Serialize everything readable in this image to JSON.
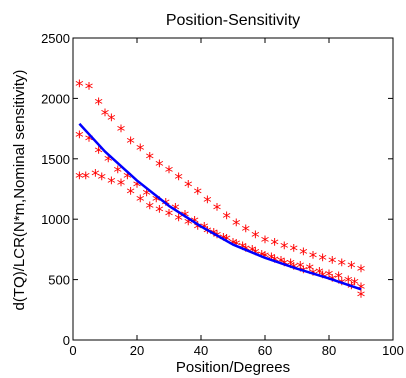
{
  "chart_data": {
    "type": "scatter",
    "title": "Position-Sensitivity",
    "xlabel": "Position/Degrees",
    "ylabel": "d(TQ)/LCR(N*m,Nominal sensitivity)",
    "xlim": [
      0,
      100
    ],
    "ylim": [
      0,
      2500
    ],
    "xticks": [
      "0",
      "20",
      "40",
      "60",
      "80",
      "100"
    ],
    "yticks": [
      "0",
      "500",
      "1000",
      "1500",
      "2000",
      "2500"
    ],
    "grid": false,
    "series": [
      {
        "style": "markers",
        "marker": "*",
        "color": "#ff0000",
        "points": [
          [
            2,
            2110
          ],
          [
            5,
            2090
          ],
          [
            8,
            1960
          ],
          [
            10,
            1870
          ],
          [
            12,
            1830
          ],
          [
            15,
            1740
          ],
          [
            18,
            1640
          ],
          [
            21,
            1580
          ],
          [
            24,
            1510
          ],
          [
            27,
            1450
          ],
          [
            30,
            1400
          ],
          [
            33,
            1340
          ],
          [
            36,
            1280
          ],
          [
            39,
            1220
          ],
          [
            42,
            1150
          ],
          [
            45,
            1090
          ],
          [
            48,
            1020
          ],
          [
            51,
            960
          ],
          [
            54,
            910
          ],
          [
            57,
            860
          ],
          [
            60,
            820
          ],
          [
            63,
            800
          ],
          [
            66,
            770
          ],
          [
            69,
            750
          ],
          [
            72,
            720
          ],
          [
            75,
            690
          ],
          [
            78,
            670
          ],
          [
            81,
            650
          ],
          [
            84,
            630
          ],
          [
            87,
            610
          ],
          [
            90,
            580
          ],
          [
            2,
            1690
          ],
          [
            5,
            1660
          ],
          [
            8,
            1560
          ],
          [
            11,
            1490
          ],
          [
            14,
            1400
          ],
          [
            17,
            1350
          ],
          [
            20,
            1280
          ],
          [
            23,
            1210
          ],
          [
            26,
            1160
          ],
          [
            29,
            1130
          ],
          [
            32,
            1090
          ],
          [
            35,
            1030
          ],
          [
            38,
            980
          ],
          [
            41,
            930
          ],
          [
            44,
            880
          ],
          [
            47,
            840
          ],
          [
            50,
            800
          ],
          [
            53,
            770
          ],
          [
            56,
            740
          ],
          [
            59,
            700
          ],
          [
            62,
            680
          ],
          [
            65,
            650
          ],
          [
            68,
            630
          ],
          [
            71,
            610
          ],
          [
            74,
            590
          ],
          [
            77,
            560
          ],
          [
            80,
            540
          ],
          [
            83,
            520
          ],
          [
            86,
            490
          ],
          [
            88,
            470
          ],
          [
            90,
            430
          ],
          [
            2,
            1350
          ],
          [
            4,
            1350
          ],
          [
            7,
            1370
          ],
          [
            9,
            1340
          ],
          [
            12,
            1310
          ],
          [
            15,
            1290
          ],
          [
            18,
            1220
          ],
          [
            21,
            1160
          ],
          [
            24,
            1100
          ],
          [
            27,
            1070
          ],
          [
            30,
            1040
          ],
          [
            33,
            1000
          ],
          [
            36,
            970
          ],
          [
            39,
            930
          ],
          [
            42,
            900
          ],
          [
            45,
            860
          ],
          [
            48,
            830
          ],
          [
            51,
            790
          ],
          [
            54,
            750
          ],
          [
            57,
            720
          ],
          [
            60,
            690
          ],
          [
            63,
            660
          ],
          [
            66,
            630
          ],
          [
            69,
            600
          ],
          [
            72,
            570
          ],
          [
            75,
            550
          ],
          [
            78,
            530
          ],
          [
            81,
            500
          ],
          [
            84,
            470
          ],
          [
            87,
            440
          ],
          [
            90,
            370
          ]
        ]
      },
      {
        "style": "line",
        "color": "#0000ff",
        "x": [
          2,
          10,
          20,
          30,
          40,
          50,
          60,
          70,
          80,
          90
        ],
        "y": [
          1790,
          1560,
          1320,
          1110,
          940,
          790,
          680,
          590,
          510,
          420
        ]
      }
    ]
  }
}
